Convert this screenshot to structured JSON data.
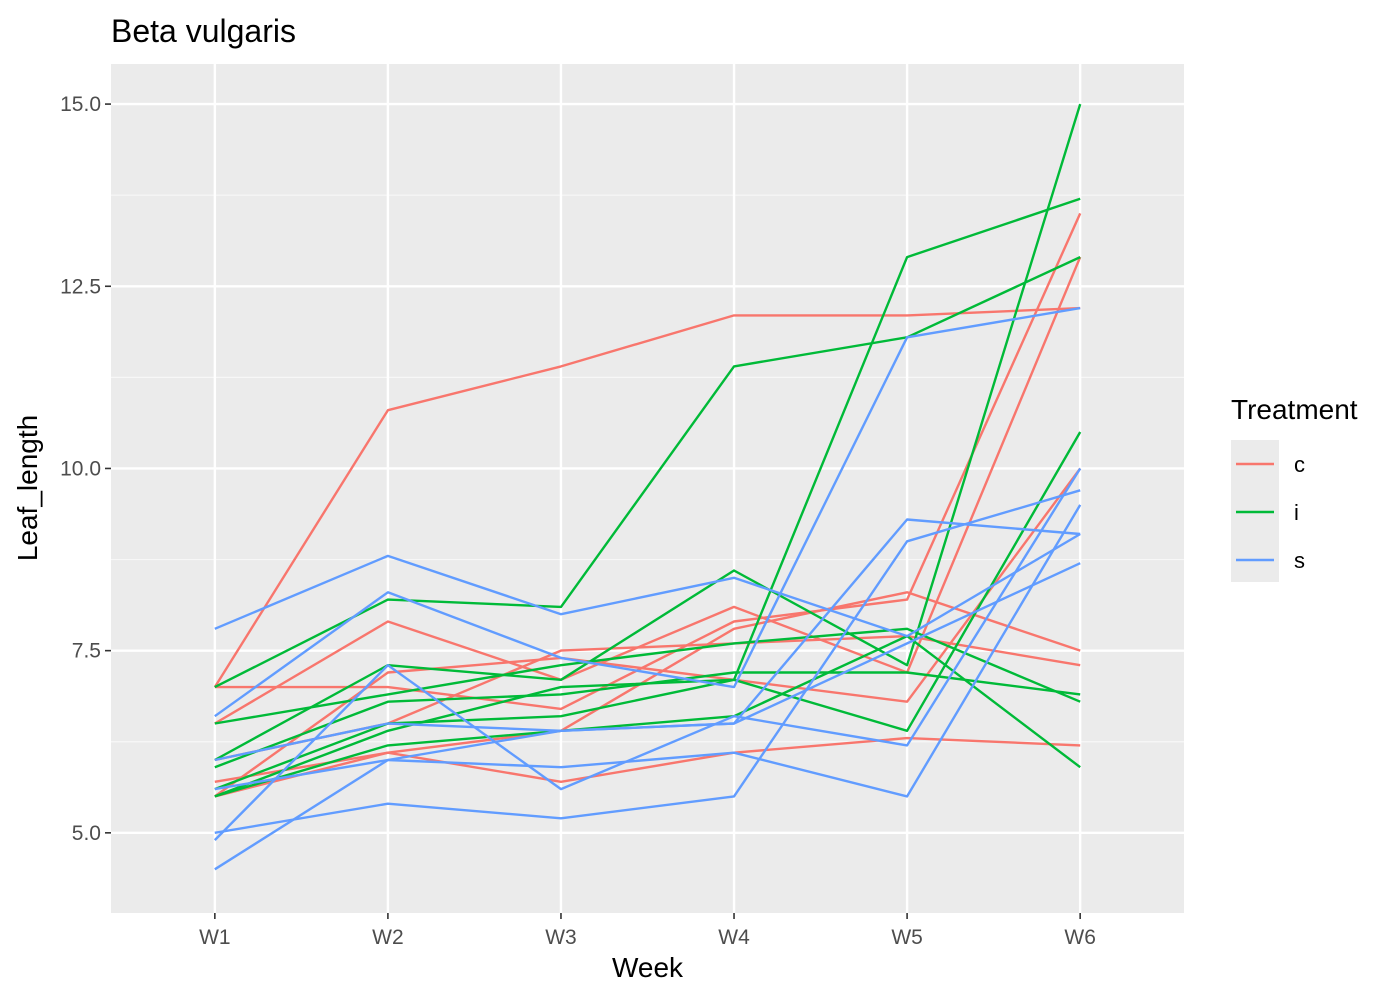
{
  "chart_data": {
    "type": "line",
    "title": "Beta vulgaris",
    "xlabel": "Week",
    "ylabel": "Leaf_length",
    "categories": [
      "W1",
      "W2",
      "W3",
      "W4",
      "W5",
      "W6"
    ],
    "yticks": [
      "5.0",
      "7.5",
      "10.0",
      "12.5",
      "15.0"
    ],
    "ytick_values": [
      5.0,
      7.5,
      10.0,
      12.5,
      15.0
    ],
    "ylim": [
      3.9,
      15.55
    ],
    "grid": true,
    "legend": {
      "title": "Treatment",
      "position": "right",
      "entries": [
        {
          "label": "c",
          "color": "#F8766D"
        },
        {
          "label": "i",
          "color": "#00BA38"
        },
        {
          "label": "s",
          "color": "#619CFF"
        }
      ]
    },
    "series": [
      {
        "group": "c",
        "values": [
          7.0,
          10.8,
          11.4,
          12.1,
          12.1,
          12.2
        ]
      },
      {
        "group": "c",
        "values": [
          7.0,
          7.0,
          6.7,
          7.9,
          8.2,
          13.5
        ]
      },
      {
        "group": "c",
        "values": [
          6.5,
          7.9,
          7.1,
          8.1,
          7.2,
          12.9
        ]
      },
      {
        "group": "c",
        "values": [
          6.0,
          6.5,
          7.5,
          7.6,
          7.7,
          7.3
        ]
      },
      {
        "group": "c",
        "values": [
          5.7,
          6.1,
          5.7,
          6.1,
          6.3,
          6.2
        ]
      },
      {
        "group": "c",
        "values": [
          5.5,
          6.1,
          6.4,
          7.8,
          8.3,
          7.5
        ]
      },
      {
        "group": "c",
        "values": [
          5.5,
          7.2,
          7.4,
          7.1,
          6.8,
          10.0
        ]
      },
      {
        "group": "i",
        "values": [
          7.0,
          8.2,
          8.1,
          11.4,
          11.8,
          12.9
        ]
      },
      {
        "group": "i",
        "values": [
          6.5,
          6.9,
          7.3,
          7.6,
          7.8,
          6.8
        ]
      },
      {
        "group": "i",
        "values": [
          6.0,
          7.3,
          7.1,
          8.6,
          7.3,
          15.0
        ]
      },
      {
        "group": "i",
        "values": [
          5.9,
          6.8,
          6.9,
          7.2,
          7.2,
          6.9
        ]
      },
      {
        "group": "i",
        "values": [
          5.5,
          6.4,
          7.0,
          7.1,
          12.9,
          13.7
        ]
      },
      {
        "group": "i",
        "values": [
          5.5,
          6.2,
          6.4,
          6.6,
          7.7,
          5.9
        ]
      },
      {
        "group": "i",
        "values": [
          5.6,
          6.5,
          6.6,
          7.1,
          6.4,
          10.5
        ]
      },
      {
        "group": "s",
        "values": [
          7.8,
          8.8,
          8.0,
          8.5,
          7.7,
          9.1
        ]
      },
      {
        "group": "s",
        "values": [
          6.6,
          8.3,
          7.4,
          7.0,
          11.8,
          12.2
        ]
      },
      {
        "group": "s",
        "values": [
          6.0,
          6.5,
          6.4,
          6.5,
          9.3,
          9.1
        ]
      },
      {
        "group": "s",
        "values": [
          5.6,
          6.0,
          5.9,
          6.1,
          5.5,
          9.5
        ]
      },
      {
        "group": "s",
        "values": [
          5.0,
          5.4,
          5.2,
          5.5,
          9.0,
          9.7
        ]
      },
      {
        "group": "s",
        "values": [
          4.9,
          7.3,
          5.6,
          6.6,
          6.2,
          10.0
        ]
      },
      {
        "group": "s",
        "values": [
          4.5,
          6.0,
          6.4,
          6.5,
          7.6,
          8.7
        ]
      }
    ]
  }
}
